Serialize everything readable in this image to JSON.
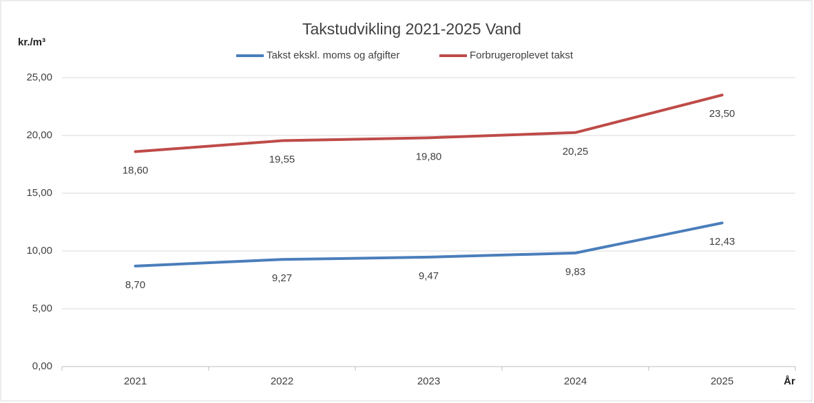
{
  "chart_data": {
    "type": "line",
    "title": "Takstudvikling 2021-2025 Vand",
    "y_label": "kr./m³",
    "x_label": "År",
    "categories": [
      "2021",
      "2022",
      "2023",
      "2024",
      "2025"
    ],
    "series": [
      {
        "name": "Takst ekskl. moms og afgifter",
        "color": "#4a7ebb",
        "values": [
          8.7,
          9.27,
          9.47,
          9.83,
          12.43
        ],
        "value_labels": [
          "8,70",
          "9,27",
          "9,47",
          "9,83",
          "12,43"
        ]
      },
      {
        "name": "Forbrugeroplevet takst",
        "color": "#be4b48",
        "values": [
          18.6,
          19.55,
          19.8,
          20.25,
          23.5
        ],
        "value_labels": [
          "18,60",
          "19,55",
          "19,80",
          "20,25",
          "23,50"
        ]
      }
    ],
    "ylim": [
      0,
      25
    ],
    "yticks": [
      {
        "value": 0,
        "label": "0,00"
      },
      {
        "value": 5,
        "label": "5,00"
      },
      {
        "value": 10,
        "label": "10,00"
      },
      {
        "value": 15,
        "label": "15,00"
      },
      {
        "value": 20,
        "label": "20,00"
      },
      {
        "value": 25,
        "label": "25,00"
      }
    ],
    "grid": true,
    "legend": "top"
  }
}
